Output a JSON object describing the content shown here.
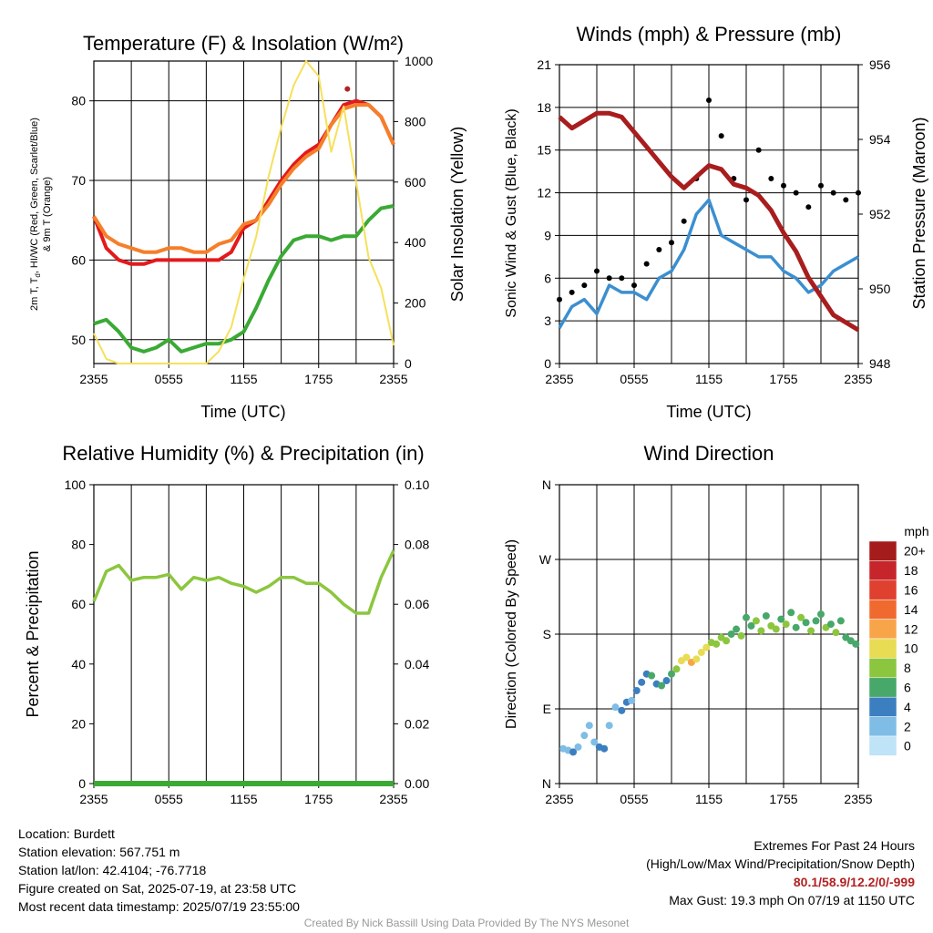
{
  "chart_data": [
    {
      "type": "line",
      "title": "Temperature (F) & Insolation (W/m²)",
      "xlabel": "Time (UTC)",
      "ylabel": "2m T, Td, HI/WC (Red, Green, Scarlet/Blue) & 9m T (Orange)",
      "ylabel_line1": "2m T, T",
      "ylabel_sub": "d",
      "ylabel_rest": ", HI/WC (Red, Green, Scarlet/Blue)",
      "ylabel_line2": "& 9m T (Orange)",
      "y2label": "Solar Insolation (Yellow)",
      "x_ticks": [
        "2355",
        "0555",
        "1155",
        "1755",
        "2355"
      ],
      "ylim": [
        47,
        85
      ],
      "y_ticks": [
        50,
        60,
        70,
        80
      ],
      "y2lim": [
        0,
        1000
      ],
      "y2_ticks": [
        0,
        200,
        400,
        600,
        800,
        1000
      ],
      "x_hours": [
        0,
        1,
        2,
        3,
        4,
        5,
        6,
        7,
        8,
        9,
        10,
        11,
        12,
        13,
        14,
        15,
        16,
        17,
        18,
        19,
        20,
        21,
        22,
        23,
        24
      ],
      "series": [
        {
          "color": "#e31a1c",
          "axis": "left",
          "values": [
            65.5,
            61.5,
            60,
            59.5,
            59.5,
            60,
            60,
            60,
            60,
            60,
            60,
            61,
            64,
            65,
            67.5,
            70,
            72,
            73.5,
            74.5,
            77,
            79.5,
            80,
            79.5,
            78,
            74.5
          ]
        },
        {
          "color": "#f57f2a",
          "axis": "left",
          "values": [
            65.5,
            63,
            62,
            61.5,
            61,
            61,
            61.5,
            61.5,
            61,
            61,
            62,
            62.5,
            64.5,
            65,
            67,
            69.5,
            71.5,
            73,
            74,
            77,
            79,
            79.5,
            79.5,
            78,
            74.5
          ]
        },
        {
          "color": "#3aaa35",
          "axis": "left",
          "values": [
            52,
            52.5,
            51,
            49,
            48.5,
            49,
            50,
            48.5,
            49,
            49.5,
            49.5,
            50,
            51,
            54,
            57.5,
            60.5,
            62.5,
            63,
            63,
            62.5,
            63,
            63,
            65,
            66.5,
            66.8
          ]
        },
        {
          "color": "#f6e05c",
          "axis": "right",
          "values": [
            100,
            15,
            0,
            0,
            0,
            0,
            0,
            0,
            0,
            0,
            40,
            120,
            280,
            420,
            620,
            780,
            920,
            1000,
            950,
            700,
            850,
            600,
            350,
            250,
            60
          ]
        }
      ],
      "marker": {
        "value": 81.5,
        "color": "#b22222"
      }
    },
    {
      "type": "scatter",
      "title": "Winds (mph) & Pressure (mb)",
      "xlabel": "Time (UTC)",
      "ylabel": "Sonic Wind & Gust (Blue, Black)",
      "y2label": "Station Pressure (Maroon)",
      "x_ticks": [
        "2355",
        "0555",
        "1155",
        "1755",
        "2355"
      ],
      "ylim": [
        0,
        21
      ],
      "y_ticks": [
        0,
        3,
        6,
        9,
        12,
        15,
        18,
        21
      ],
      "y2lim": [
        948,
        956
      ],
      "y2_ticks": [
        948,
        950,
        952,
        954,
        956
      ],
      "x_hours": [
        0,
        1,
        2,
        3,
        4,
        5,
        6,
        7,
        8,
        9,
        10,
        11,
        12,
        13,
        14,
        15,
        16,
        17,
        18,
        19,
        20,
        21,
        22,
        23,
        24
      ],
      "series": [
        {
          "color": "#3b8fd0",
          "axis": "left",
          "kind": "line",
          "values": [
            2.5,
            4,
            4.5,
            3.5,
            5.5,
            5,
            5,
            4.5,
            6,
            6.5,
            8,
            10.5,
            11.5,
            9,
            8.5,
            8,
            7.5,
            7.5,
            6.5,
            6,
            5,
            5.5,
            6.5,
            7,
            7.5
          ]
        },
        {
          "color": "#000000",
          "axis": "left",
          "kind": "dots",
          "values": [
            4.5,
            5,
            5.5,
            6.5,
            6,
            6,
            5.5,
            7,
            8,
            8.5,
            10,
            13,
            18.5,
            16,
            13,
            11.5,
            15,
            13,
            12.5,
            12,
            11,
            12.5,
            12,
            11.5,
            12
          ]
        },
        {
          "color": "#a81d1d",
          "axis": "right",
          "kind": "line",
          "values": [
            954.6,
            954.3,
            954.5,
            954.7,
            954.7,
            954.6,
            954.2,
            953.8,
            953.4,
            953,
            952.7,
            953,
            953.3,
            953.2,
            952.8,
            952.7,
            952.5,
            952.1,
            951.5,
            951,
            950.3,
            949.8,
            949.3,
            949.1,
            948.9
          ]
        }
      ]
    },
    {
      "type": "line",
      "title": "Relative Humidity (%) & Precipitation (in)",
      "ylabel": "Percent & Precipitation",
      "x_ticks": [
        "2355",
        "0555",
        "1155",
        "1755",
        "2355"
      ],
      "ylim": [
        0,
        100
      ],
      "y_ticks": [
        0,
        20,
        40,
        60,
        80,
        100
      ],
      "y2lim": [
        0,
        0.1
      ],
      "y2_ticks": [
        "0.00",
        "0.02",
        "0.04",
        "0.06",
        "0.08",
        "0.10"
      ],
      "x_hours": [
        0,
        1,
        2,
        3,
        4,
        5,
        6,
        7,
        8,
        9,
        10,
        11,
        12,
        13,
        14,
        15,
        16,
        17,
        18,
        19,
        20,
        21,
        22,
        23,
        24
      ],
      "series": [
        {
          "color": "#8cc63f",
          "axis": "left",
          "values": [
            61,
            71,
            73,
            68,
            69,
            69,
            70,
            65,
            69,
            68,
            69,
            67,
            66,
            64,
            66,
            69,
            69,
            67,
            67,
            64,
            60,
            57,
            57,
            69,
            78
          ]
        },
        {
          "color": "#3aaa35",
          "axis": "right",
          "values": [
            0,
            0,
            0,
            0,
            0,
            0,
            0,
            0,
            0,
            0,
            0,
            0,
            0,
            0,
            0,
            0,
            0,
            0,
            0,
            0,
            0,
            0,
            0,
            0,
            0
          ]
        }
      ]
    },
    {
      "type": "scatter",
      "title": "Wind Direction",
      "ylabel": "Direction (Colored By Speed)",
      "x_ticks": [
        "2355",
        "0555",
        "1155",
        "1755",
        "2355"
      ],
      "y_ticks": [
        "N",
        "E",
        "S",
        "W",
        "N"
      ],
      "ylim": [
        0,
        360
      ],
      "legend_title": "mph",
      "legend": [
        {
          "label": "20+",
          "color": "#a51c1c"
        },
        {
          "label": "18",
          "color": "#c6262b"
        },
        {
          "label": "16",
          "color": "#e0402f"
        },
        {
          "label": "14",
          "color": "#f06a2f"
        },
        {
          "label": "12",
          "color": "#f8a54a"
        },
        {
          "label": "10",
          "color": "#e8dc55"
        },
        {
          "label": "8",
          "color": "#8cc63f"
        },
        {
          "label": "6",
          "color": "#47a86a"
        },
        {
          "label": "4",
          "color": "#3b7fc0"
        },
        {
          "label": "2",
          "color": "#7fbde6"
        },
        {
          "label": "0",
          "color": "#bfe3f7"
        }
      ],
      "points": [
        {
          "hour": 0.3,
          "dir": 42,
          "speed": 2
        },
        {
          "hour": 0.7,
          "dir": 40,
          "speed": 2
        },
        {
          "hour": 1.1,
          "dir": 38,
          "speed": 3
        },
        {
          "hour": 1.5,
          "dir": 44,
          "speed": 2
        },
        {
          "hour": 2.0,
          "dir": 58,
          "speed": 2
        },
        {
          "hour": 2.4,
          "dir": 70,
          "speed": 1
        },
        {
          "hour": 2.8,
          "dir": 50,
          "speed": 2
        },
        {
          "hour": 3.2,
          "dir": 44,
          "speed": 3
        },
        {
          "hour": 3.6,
          "dir": 42,
          "speed": 3
        },
        {
          "hour": 4.0,
          "dir": 70,
          "speed": 2
        },
        {
          "hour": 4.5,
          "dir": 92,
          "speed": 2
        },
        {
          "hour": 5.0,
          "dir": 88,
          "speed": 3
        },
        {
          "hour": 5.4,
          "dir": 98,
          "speed": 3
        },
        {
          "hour": 5.8,
          "dir": 100,
          "speed": 2
        },
        {
          "hour": 6.2,
          "dir": 112,
          "speed": 4
        },
        {
          "hour": 6.6,
          "dir": 122,
          "speed": 4
        },
        {
          "hour": 7.0,
          "dir": 132,
          "speed": 4
        },
        {
          "hour": 7.4,
          "dir": 130,
          "speed": 5
        },
        {
          "hour": 7.8,
          "dir": 120,
          "speed": 4
        },
        {
          "hour": 8.2,
          "dir": 118,
          "speed": 5
        },
        {
          "hour": 8.6,
          "dir": 124,
          "speed": 4
        },
        {
          "hour": 9.0,
          "dir": 132,
          "speed": 6
        },
        {
          "hour": 9.4,
          "dir": 138,
          "speed": 7
        },
        {
          "hour": 9.8,
          "dir": 148,
          "speed": 9
        },
        {
          "hour": 10.2,
          "dir": 152,
          "speed": 10
        },
        {
          "hour": 10.6,
          "dir": 146,
          "speed": 11
        },
        {
          "hour": 11.0,
          "dir": 150,
          "speed": 10
        },
        {
          "hour": 11.4,
          "dir": 158,
          "speed": 10
        },
        {
          "hour": 11.8,
          "dir": 164,
          "speed": 9
        },
        {
          "hour": 12.2,
          "dir": 170,
          "speed": 8
        },
        {
          "hour": 12.6,
          "dir": 168,
          "speed": 7
        },
        {
          "hour": 13.0,
          "dir": 176,
          "speed": 8
        },
        {
          "hour": 13.4,
          "dir": 172,
          "speed": 7
        },
        {
          "hour": 13.8,
          "dir": 180,
          "speed": 6
        },
        {
          "hour": 14.2,
          "dir": 186,
          "speed": 6
        },
        {
          "hour": 14.6,
          "dir": 178,
          "speed": 7
        },
        {
          "hour": 15.0,
          "dir": 200,
          "speed": 6
        },
        {
          "hour": 15.4,
          "dir": 190,
          "speed": 5
        },
        {
          "hour": 15.8,
          "dir": 196,
          "speed": 7
        },
        {
          "hour": 16.2,
          "dir": 184,
          "speed": 8
        },
        {
          "hour": 16.6,
          "dir": 202,
          "speed": 6
        },
        {
          "hour": 17.0,
          "dir": 190,
          "speed": 7
        },
        {
          "hour": 17.4,
          "dir": 186,
          "speed": 8
        },
        {
          "hour": 17.8,
          "dir": 198,
          "speed": 6
        },
        {
          "hour": 18.2,
          "dir": 192,
          "speed": 7
        },
        {
          "hour": 18.6,
          "dir": 206,
          "speed": 5
        },
        {
          "hour": 19.0,
          "dir": 188,
          "speed": 6
        },
        {
          "hour": 19.4,
          "dir": 200,
          "speed": 7
        },
        {
          "hour": 19.8,
          "dir": 194,
          "speed": 6
        },
        {
          "hour": 20.2,
          "dir": 184,
          "speed": 8
        },
        {
          "hour": 20.6,
          "dir": 196,
          "speed": 6
        },
        {
          "hour": 21.0,
          "dir": 204,
          "speed": 5
        },
        {
          "hour": 21.4,
          "dir": 188,
          "speed": 7
        },
        {
          "hour": 21.8,
          "dir": 192,
          "speed": 6
        },
        {
          "hour": 22.2,
          "dir": 182,
          "speed": 7
        },
        {
          "hour": 22.6,
          "dir": 196,
          "speed": 6
        },
        {
          "hour": 23.0,
          "dir": 176,
          "speed": 6
        },
        {
          "hour": 23.4,
          "dir": 172,
          "speed": 5
        },
        {
          "hour": 23.8,
          "dir": 168,
          "speed": 6
        }
      ]
    }
  ],
  "info_left": [
    "Location: Burdett",
    "Station elevation: 567.751 m",
    "Station lat/lon: 42.4104; -76.7718",
    "Figure created on Sat, 2025-07-19, at 23:58 UTC",
    "Most recent data timestamp: 2025/07/19 23:55:00"
  ],
  "extremes": {
    "line1": "Extremes For Past 24 Hours",
    "line2": "(High/Low/Max Wind/Precipitation/Snow Depth)",
    "values": "80.1/58.9/12.2/0/-999",
    "gust": "Max Gust: 19.3 mph On 07/19 at 1150 UTC"
  },
  "credit": "Created By Nick Bassill Using Data Provided By The NYS Mesonet"
}
